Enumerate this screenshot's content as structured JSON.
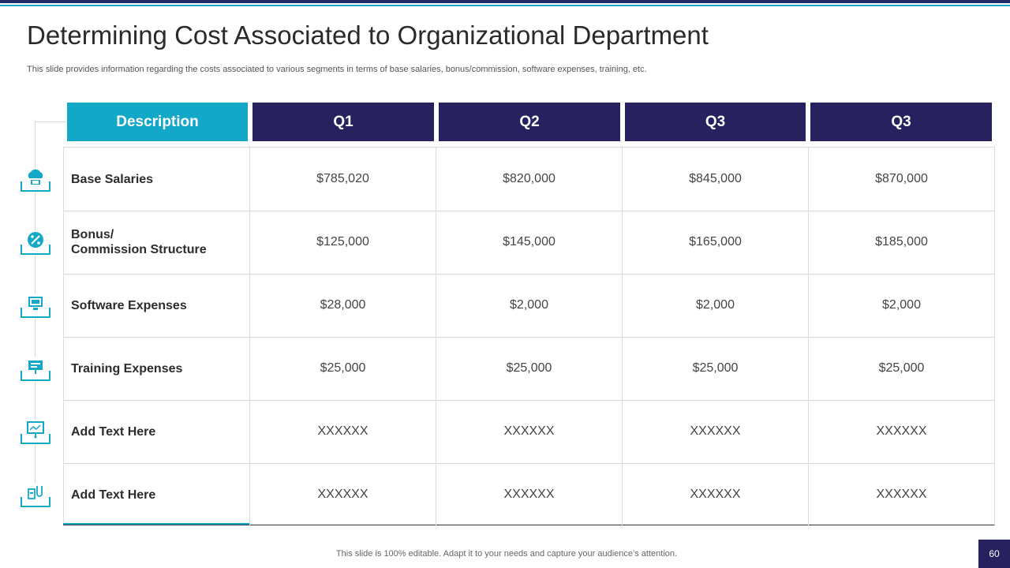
{
  "slide": {
    "title": "Determining Cost Associated to Organizational Department",
    "subtitle": "This slide provides information regarding the costs associated to various segments in terms of base salaries, bonus/commission, software expenses, training, etc.",
    "footer": "This slide is 100% editable. Adapt it to your needs and capture your audience’s attention.",
    "page_number": "60"
  },
  "table": {
    "headers": [
      "Description",
      "Q1",
      "Q2",
      "Q3",
      "Q3"
    ],
    "rows": [
      {
        "label_line1": "Base Salaries",
        "label_line2": "",
        "icon": "cloud-money-icon",
        "values": [
          "$785,020",
          "$820,000",
          "$845,000",
          "$870,000"
        ]
      },
      {
        "label_line1": "Bonus/",
        "label_line2": "Commission Structure",
        "icon": "percent-badge-icon",
        "values": [
          "$125,000",
          "$145,000",
          "$165,000",
          "$185,000"
        ]
      },
      {
        "label_line1": "Software Expenses",
        "label_line2": "",
        "icon": "computer-icon",
        "values": [
          "$28,000",
          "$2,000",
          "$2,000",
          "$2,000"
        ]
      },
      {
        "label_line1": "Training Expenses",
        "label_line2": "",
        "icon": "training-presentation-icon",
        "values": [
          "$25,000",
          "$25,000",
          "$25,000",
          "$25,000"
        ]
      },
      {
        "label_line1": "Add Text Here",
        "label_line2": "",
        "icon": "projector-screen-icon",
        "values": [
          "XXXXXX",
          "XXXXXX",
          "XXXXXX",
          "XXXXXX"
        ]
      },
      {
        "label_line1": "Add Text Here",
        "label_line2": "",
        "icon": "analytics-tools-icon",
        "values": [
          "XXXXXX",
          "XXXXXX",
          "XXXXXX",
          "XXXXXX"
        ]
      }
    ]
  },
  "colors": {
    "navy": "#27225f",
    "teal": "#14a8c8"
  }
}
